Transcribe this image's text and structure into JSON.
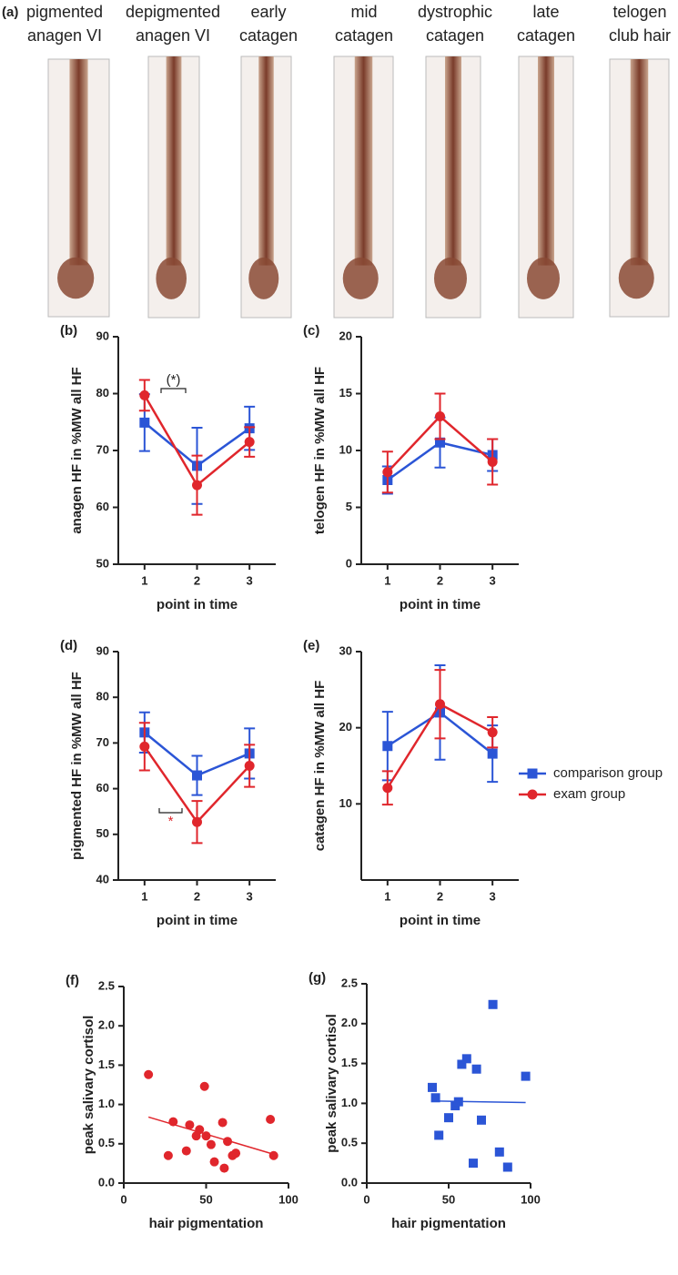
{
  "panel_a": {
    "label": "(a)",
    "images": [
      {
        "lines": [
          "pigmented",
          "anagen VI"
        ]
      },
      {
        "lines": [
          "depigmented",
          "anagen VI"
        ]
      },
      {
        "lines": [
          "early",
          "catagen"
        ]
      },
      {
        "lines": [
          "mid",
          "catagen"
        ]
      },
      {
        "lines": [
          "dystrophic",
          "catagen"
        ]
      },
      {
        "lines": [
          "late",
          "catagen"
        ]
      },
      {
        "lines": [
          "telogen",
          "club hair"
        ]
      }
    ]
  },
  "chart_data": [
    {
      "type": "line",
      "label": "(b)",
      "ylabel": "anagen HF in %MW all HF",
      "xlabel": "point in time",
      "x": [
        1,
        2,
        3
      ],
      "xlim": [
        0.5,
        3.5
      ],
      "xticks": [
        1,
        2,
        3
      ],
      "ylim": [
        50,
        90
      ],
      "yticks": [
        50,
        60,
        70,
        80,
        90
      ],
      "series": [
        {
          "color": "#2b55d6",
          "marker": "square",
          "values": [
            74.9,
            67.3,
            73.9
          ],
          "errors": [
            5.0,
            6.7,
            3.8
          ]
        },
        {
          "color": "#e0262c",
          "marker": "circle",
          "values": [
            79.7,
            63.9,
            71.5
          ],
          "errors": [
            2.7,
            5.2,
            2.6
          ]
        }
      ],
      "annotation": {
        "text": "(*)",
        "color": "#222"
      }
    },
    {
      "type": "line",
      "label": "(c)",
      "ylabel": "telogen HF in %MW all HF",
      "xlabel": "point in time",
      "x": [
        1,
        2,
        3
      ],
      "xlim": [
        0.5,
        3.5
      ],
      "xticks": [
        1,
        2,
        3
      ],
      "ylim": [
        0,
        20
      ],
      "yticks": [
        0,
        5,
        10,
        15,
        20
      ],
      "series": [
        {
          "color": "#2b55d6",
          "marker": "square",
          "values": [
            7.4,
            10.7,
            9.6
          ],
          "errors": [
            1.2,
            2.2,
            1.4
          ]
        },
        {
          "color": "#e0262c",
          "marker": "circle",
          "values": [
            8.1,
            13.0,
            9.0
          ],
          "errors": [
            1.8,
            2.0,
            2.0
          ]
        }
      ]
    },
    {
      "type": "line",
      "label": "(d)",
      "ylabel": "pigmented HF in %MW all HF",
      "xlabel": "point in time",
      "x": [
        1,
        2,
        3
      ],
      "xlim": [
        0.5,
        3.5
      ],
      "xticks": [
        1,
        2,
        3
      ],
      "ylim": [
        40,
        90
      ],
      "yticks": [
        40,
        50,
        60,
        70,
        80,
        90
      ],
      "series": [
        {
          "color": "#2b55d6",
          "marker": "square",
          "values": [
            72.3,
            62.9,
            67.7
          ],
          "errors": [
            4.4,
            4.3,
            5.5
          ]
        },
        {
          "color": "#e0262c",
          "marker": "circle",
          "values": [
            69.2,
            52.7,
            65.0
          ],
          "errors": [
            5.2,
            4.6,
            4.6
          ]
        }
      ],
      "annotation": {
        "text": "*",
        "color": "#e0262c"
      }
    },
    {
      "type": "line",
      "label": "(e)",
      "ylabel": "catagen HF in %MW all HF",
      "xlabel": "point in time",
      "x": [
        1,
        2,
        3
      ],
      "xlim": [
        0.5,
        3.5
      ],
      "xticks": [
        1,
        2,
        3
      ],
      "ylim": [
        0,
        30
      ],
      "yticks": [
        10,
        20,
        30
      ],
      "legend": "right",
      "series": [
        {
          "name": "comparison group",
          "color": "#2b55d6",
          "marker": "square",
          "values": [
            17.6,
            22.0,
            16.6
          ],
          "errors": [
            4.5,
            6.2,
            3.7
          ]
        },
        {
          "name": "exam group",
          "color": "#e0262c",
          "marker": "circle",
          "values": [
            12.1,
            23.1,
            19.4
          ],
          "errors": [
            2.2,
            4.5,
            2.0
          ]
        }
      ]
    },
    {
      "type": "scatter",
      "label": "(f)",
      "ylabel": "peak salivary cortisol",
      "xlabel": "hair pigmentation",
      "xlim": [
        0,
        100
      ],
      "xticks": [
        0,
        50,
        100
      ],
      "ylim": [
        0,
        2.5
      ],
      "yticks": [
        {
          "value": 0,
          "label": "0.0"
        },
        0.5,
        {
          "value": 1,
          "label": "1.0"
        },
        1.5,
        {
          "value": 2,
          "label": "2.0"
        },
        2.5
      ],
      "series": [
        {
          "color": "#e0262c",
          "marker": "circle",
          "x": [
            15,
            49,
            30,
            40,
            46,
            44,
            50,
            60,
            63,
            53,
            38,
            27,
            55,
            66,
            68,
            61,
            89,
            91
          ],
          "values": [
            1.38,
            1.23,
            0.78,
            0.74,
            0.68,
            0.6,
            0.6,
            0.77,
            0.53,
            0.49,
            0.41,
            0.35,
            0.27,
            0.35,
            0.38,
            0.19,
            0.81,
            0.35
          ]
        }
      ],
      "fit": {
        "x": [
          15,
          92
        ],
        "y": [
          0.84,
          0.36
        ]
      }
    },
    {
      "type": "scatter",
      "label": "(g)",
      "ylabel": "peak salivary cortisol",
      "xlabel": "hair pigmentation",
      "xlim": [
        0,
        100
      ],
      "xticks": [
        0,
        50,
        100
      ],
      "ylim": [
        0,
        2.5
      ],
      "yticks": [
        {
          "value": 0,
          "label": "0.0"
        },
        0.5,
        {
          "value": 1,
          "label": "1.0"
        },
        1.5,
        {
          "value": 2,
          "label": "2.0"
        },
        2.5
      ],
      "series": [
        {
          "color": "#2b55d6",
          "marker": "square",
          "x": [
            40,
            42,
            44,
            50,
            54,
            56,
            58,
            61,
            67,
            70,
            77,
            81,
            86,
            97,
            65
          ],
          "values": [
            1.2,
            1.07,
            0.6,
            0.82,
            0.97,
            1.02,
            1.49,
            1.56,
            1.43,
            0.79,
            2.24,
            0.39,
            0.2,
            1.34,
            0.25
          ]
        }
      ],
      "fit": {
        "x": [
          40,
          97
        ],
        "y": [
          1.03,
          1.01
        ]
      }
    }
  ]
}
